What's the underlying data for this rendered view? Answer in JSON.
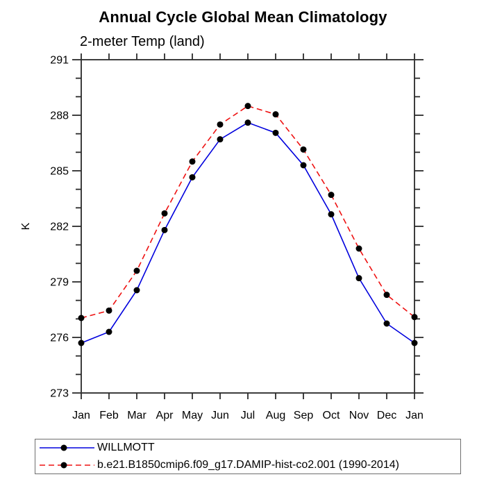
{
  "title": "Annual Cycle Global Mean Climatology",
  "subtitle": "2-meter Temp (land)",
  "colors": {
    "axis": "#3d3d3d",
    "tick": "#2a2a2a",
    "text": "#000000",
    "background": "#ffffff",
    "legend_border": "#6e6e6e",
    "series_blue": "#0000dd",
    "series_red": "#ee1111",
    "marker": "#000000"
  },
  "chart_data": {
    "type": "line",
    "title": "Annual Cycle Global Mean Climatology",
    "subtitle": "2-meter Temp (land)",
    "xlabel": "",
    "ylabel": "K",
    "x_categories": [
      "Jan",
      "Feb",
      "Mar",
      "Apr",
      "May",
      "Jun",
      "Jul",
      "Aug",
      "Sep",
      "Oct",
      "Nov",
      "Dec",
      "Jan"
    ],
    "ylim": [
      273,
      291
    ],
    "ytick_major": [
      273,
      276,
      279,
      282,
      285,
      288,
      291
    ],
    "ytick_minor_step": 1,
    "grid": false,
    "legend_position": "bottom-left-box",
    "series": [
      {
        "name": "WILLMOTT",
        "color": "#0000dd",
        "style": "solid",
        "marker": "circle",
        "marker_color": "#000000",
        "values": [
          275.7,
          276.3,
          278.55,
          281.8,
          284.65,
          286.7,
          287.6,
          287.05,
          285.3,
          282.65,
          279.2,
          276.75,
          275.7
        ]
      },
      {
        "name": "b.e21.B1850cmip6.f09_g17.DAMIP-hist-co2.001 (1990-2014)",
        "color": "#ee1111",
        "style": "dashed",
        "marker": "circle",
        "marker_color": "#000000",
        "values": [
          277.05,
          277.45,
          279.6,
          282.7,
          285.5,
          287.5,
          288.5,
          288.05,
          286.15,
          283.7,
          280.8,
          278.3,
          277.1
        ]
      }
    ]
  }
}
